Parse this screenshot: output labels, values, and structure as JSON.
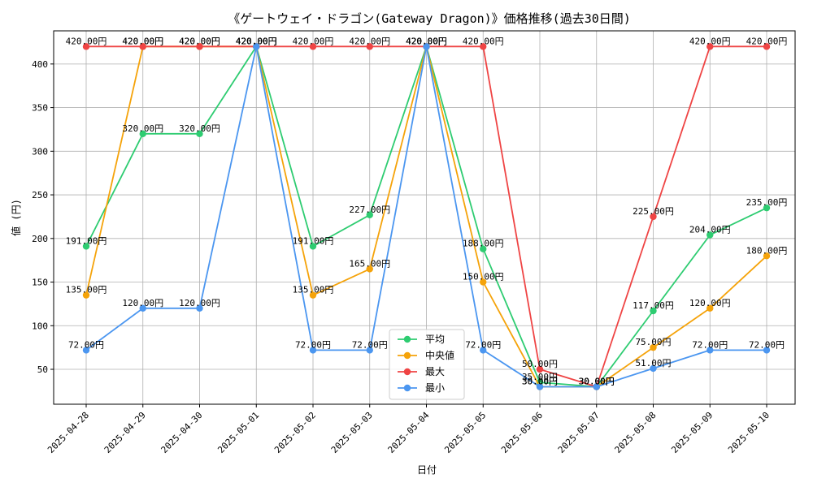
{
  "chart_data": {
    "type": "line",
    "title": "《ゲートウェイ・ドラゴン(Gateway Dragon)》価格推移(過去30日間)",
    "xlabel": "日付",
    "ylabel": "値 (円)",
    "ylim": [
      10,
      438
    ],
    "yticks": [
      50,
      100,
      150,
      200,
      250,
      300,
      350,
      400
    ],
    "grid": true,
    "legend_position": "bottom-center",
    "label_suffix": "円",
    "categories": [
      "2025-04-28",
      "2025-04-29",
      "2025-04-30",
      "2025-05-01",
      "2025-05-02",
      "2025-05-03",
      "2025-05-04",
      "2025-05-05",
      "2025-05-06",
      "2025-05-07",
      "2025-05-08",
      "2025-05-09",
      "2025-05-10"
    ],
    "series": [
      {
        "name": "平均",
        "color": "#2ecc71",
        "values": [
          191,
          320,
          320,
          420,
          191,
          227,
          420,
          188,
          35,
          30,
          117,
          204,
          235
        ]
      },
      {
        "name": "中央値",
        "color": "#f5a30a",
        "values": [
          135,
          420,
          420,
          420,
          135,
          165,
          420,
          150,
          30,
          30,
          75,
          120,
          180
        ]
      },
      {
        "name": "最大",
        "color": "#ef4444",
        "values": [
          420,
          420,
          420,
          420,
          420,
          420,
          420,
          420,
          50,
          30,
          225,
          420,
          420
        ]
      },
      {
        "name": "最小",
        "color": "#4b96f0",
        "values": [
          72,
          120,
          120,
          420,
          72,
          72,
          420,
          72,
          30,
          30,
          51,
          72,
          72
        ]
      }
    ]
  }
}
